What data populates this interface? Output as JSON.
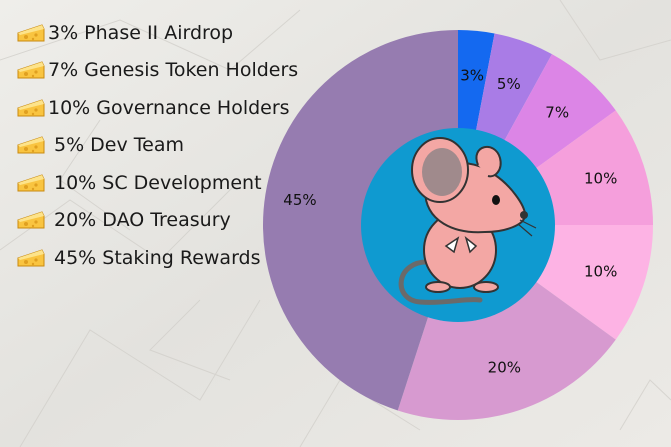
{
  "legend": [
    {
      "icon": "cheese-icon",
      "text": "3% Phase II Airdrop"
    },
    {
      "icon": "cheese-icon",
      "text": "7% Genesis Token Holders"
    },
    {
      "icon": "cheese-icon",
      "text": "10% Governance Holders"
    },
    {
      "icon": "cheese-icon",
      "text": " 5% Dev Team"
    },
    {
      "icon": "cheese-icon",
      "text": "10% SC Development"
    },
    {
      "icon": "cheese-icon",
      "text": "20% DAO Treasury"
    },
    {
      "icon": "cheese-icon",
      "text": "45% Staking Rewards"
    }
  ],
  "chart_data": {
    "type": "pie",
    "style": "donut",
    "title": "",
    "center_image": "mouse-illustration",
    "slices": [
      {
        "label": "3%",
        "value": 3,
        "color": "#1469f0"
      },
      {
        "label": "5%",
        "value": 5,
        "color": "#a97ce6"
      },
      {
        "label": "7%",
        "value": 7,
        "color": "#dc85e6"
      },
      {
        "label": "10%",
        "value": 10,
        "color": "#f59fdc"
      },
      {
        "label": "10%",
        "value": 10,
        "color": "#fdb3e4"
      },
      {
        "label": "20%",
        "value": 20,
        "color": "#d79ad0"
      },
      {
        "label": "45%",
        "value": 45,
        "color": "#967cb0"
      }
    ],
    "center_color": "#0f9ad0"
  }
}
